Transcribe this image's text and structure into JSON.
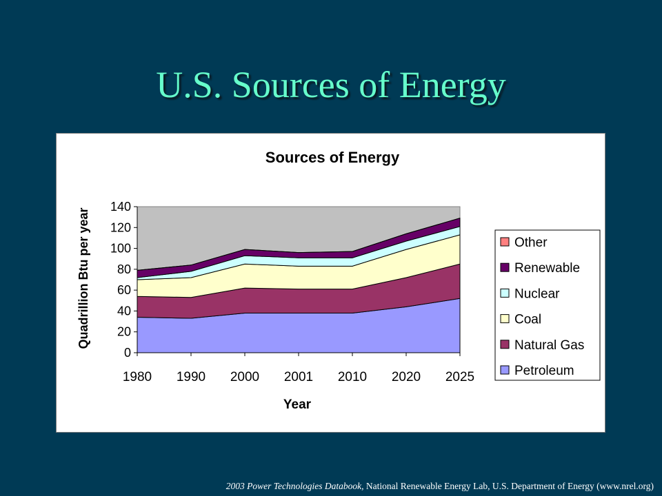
{
  "slide": {
    "title": "U.S. Sources of Energy",
    "footer_source_italic": "2003 Power Technologies Databook",
    "footer_rest": ", National Renewable Energy Lab, U.S. Department of Energy (www.nrel.org)"
  },
  "colors": {
    "background": "#003a55",
    "title": "#66ffcc",
    "plot_area": "#c0c0c0"
  },
  "chart_data": {
    "type": "area",
    "stacked": true,
    "title": "Sources of Energy",
    "xlabel": "Year",
    "ylabel": "Quadrillion Btu per year",
    "categories": [
      "1980",
      "1990",
      "2000",
      "2001",
      "2010",
      "2020",
      "2025"
    ],
    "ylim": [
      0,
      140
    ],
    "yticks": [
      0,
      20,
      40,
      60,
      80,
      100,
      120,
      140
    ],
    "grid": false,
    "legend_position": "right",
    "series": [
      {
        "name": "Petroleum",
        "color": "#9999ff",
        "values": [
          34,
          33,
          38,
          38,
          38,
          44,
          52
        ]
      },
      {
        "name": "Natural Gas",
        "color": "#993366",
        "values": [
          20,
          20,
          24,
          23,
          23,
          28,
          33
        ]
      },
      {
        "name": "Coal",
        "color": "#ffffcc",
        "values": [
          16,
          19,
          23,
          22,
          22,
          27,
          28
        ]
      },
      {
        "name": "Nuclear",
        "color": "#ccffff",
        "values": [
          2,
          6,
          8,
          8,
          8,
          8,
          8
        ]
      },
      {
        "name": "Renewable",
        "color": "#660066",
        "values": [
          7,
          6,
          6,
          5,
          6,
          7,
          8
        ]
      },
      {
        "name": "Other",
        "color": "#ff8080",
        "values": [
          0,
          0,
          0,
          0,
          0,
          0,
          0
        ]
      }
    ]
  }
}
